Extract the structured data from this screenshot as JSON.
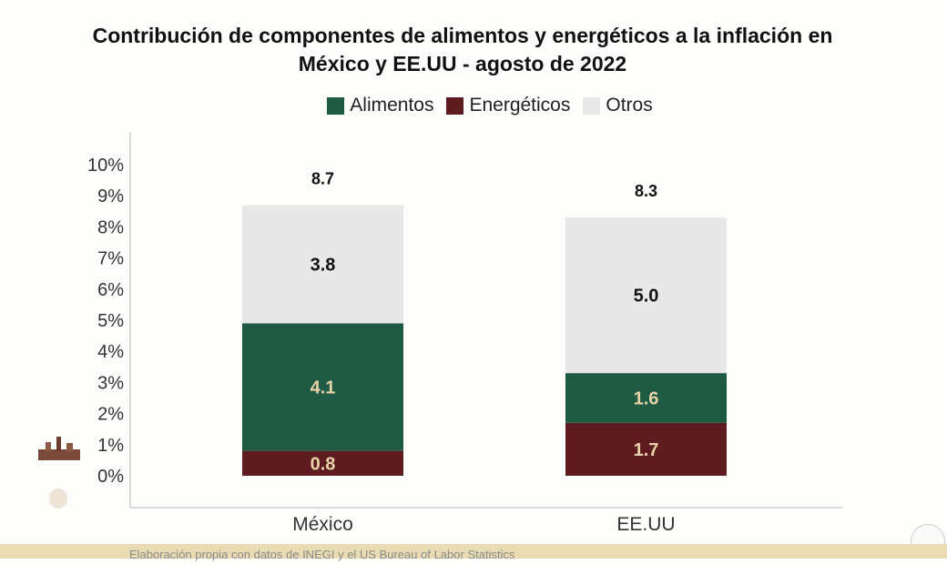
{
  "chart_data": {
    "type": "bar",
    "stacked": true,
    "title": "Contribución de componentes de alimentos y energéticos a la inflación en México y EE.UU - agosto de 2022",
    "categories": [
      "México",
      "EE.UU"
    ],
    "series": [
      {
        "name": "Energéticos",
        "values": [
          0.8,
          1.7
        ],
        "color": "#5e1b20",
        "label_color": "#e8d3a8"
      },
      {
        "name": "Alimentos",
        "values": [
          4.1,
          1.6
        ],
        "color": "#1f5a45",
        "label_color": "#e8d3a8"
      },
      {
        "name": "Otros",
        "values": [
          3.8,
          5.0
        ],
        "color": "#e8e8e8",
        "label_color": "#111111"
      }
    ],
    "legend_order": [
      "Alimentos",
      "Energéticos",
      "Otros"
    ],
    "totals": [
      8.7,
      8.3
    ],
    "yticks": [
      "0%",
      "1%",
      "2%",
      "3%",
      "4%",
      "5%",
      "6%",
      "7%",
      "8%",
      "9%",
      "10%"
    ],
    "ylim": [
      0,
      10
    ],
    "grid": false,
    "legend_position": "top"
  },
  "title_line1": "Contribución de componentes de alimentos y energéticos a la inflación en",
  "title_line2": "México y EE.UU - agosto de 2022",
  "footer": "Elaboración propia con datos de INEGI y el US Bureau of Labor Statistics"
}
